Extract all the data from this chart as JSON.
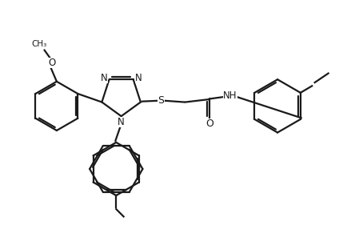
{
  "bg_color": "#ffffff",
  "line_color": "#1a1a1a",
  "line_width": 1.6,
  "font_size_atom": 8.5,
  "figsize": [
    4.35,
    2.86
  ],
  "dpi": 100,
  "xlim": [
    0,
    10
  ],
  "ylim": [
    0,
    6.6
  ]
}
